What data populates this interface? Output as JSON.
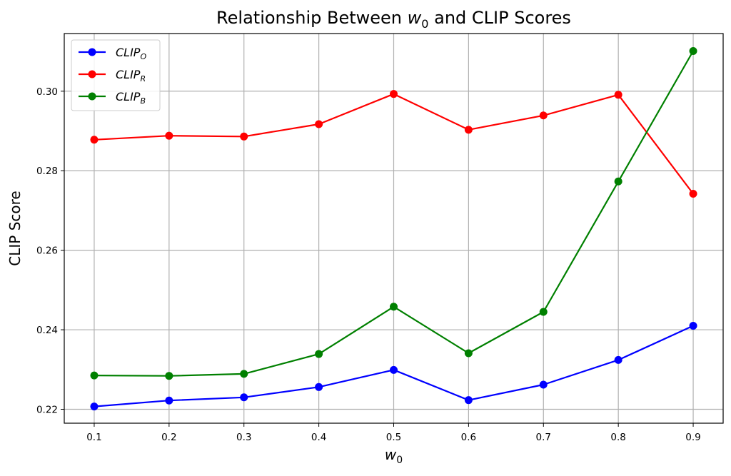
{
  "chart_data": {
    "type": "line",
    "title": {
      "prefix": "Relationship Between ",
      "var": "w",
      "sub": "0",
      "suffix": " and CLIP Scores"
    },
    "xlabel": {
      "var": "w",
      "sub": "0"
    },
    "ylabel": "CLIP Score",
    "x": [
      0.1,
      0.2,
      0.3,
      0.4,
      0.5,
      0.6,
      0.7,
      0.8,
      0.9
    ],
    "x_tick_labels": [
      "0.1",
      "0.2",
      "0.3",
      "0.4",
      "0.5",
      "0.6",
      "0.7",
      "0.8",
      "0.9"
    ],
    "y_ticks": [
      0.22,
      0.24,
      0.26,
      0.28,
      0.3
    ],
    "y_tick_labels": [
      "0.22",
      "0.24",
      "0.26",
      "0.28",
      "0.30"
    ],
    "xlim": [
      0.06,
      0.94
    ],
    "ylim": [
      0.2165,
      0.3145
    ],
    "grid": true,
    "legend_position": "top-left",
    "series": [
      {
        "name": "CLIP_O",
        "label_main": "CLIP",
        "label_sub": "O",
        "color": "#0000ff",
        "values": [
          0.2207,
          0.2222,
          0.223,
          0.2256,
          0.2299,
          0.2223,
          0.2262,
          0.2324,
          0.241
        ]
      },
      {
        "name": "CLIP_R",
        "label_main": "CLIP",
        "label_sub": "R",
        "color": "#ff0000",
        "values": [
          0.2878,
          0.2888,
          0.2886,
          0.2917,
          0.2993,
          0.2903,
          0.2939,
          0.2991,
          0.2742
        ]
      },
      {
        "name": "CLIP_B",
        "label_main": "CLIP",
        "label_sub": "B",
        "color": "#008000",
        "values": [
          0.2285,
          0.2284,
          0.2289,
          0.2339,
          0.2458,
          0.2341,
          0.2445,
          0.2773,
          0.3101
        ]
      }
    ]
  }
}
